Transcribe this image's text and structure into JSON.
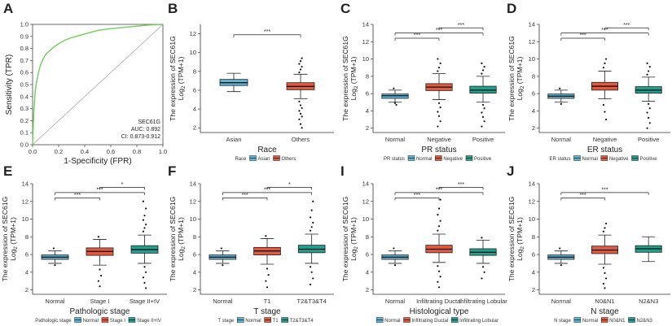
{
  "chart_data": [
    {
      "panel": "A",
      "type": "line",
      "title": "",
      "xlabel": "1-Specificity (FPR)",
      "ylabel": "Sensitivity (TPR)",
      "xlim": [
        0,
        1
      ],
      "ylim": [
        0,
        1
      ],
      "xticks": [
        "0.0",
        "0.2",
        "0.4",
        "0.6",
        "0.8",
        "1.0"
      ],
      "yticks": [
        "0.0",
        "0.1",
        "0.2",
        "0.3",
        "0.4",
        "0.5",
        "0.6",
        "0.7",
        "0.8",
        "0.9",
        "1.0"
      ],
      "roc_x": [
        0,
        0.005,
        0.01,
        0.015,
        0.02,
        0.03,
        0.04,
        0.05,
        0.06,
        0.08,
        0.1,
        0.13,
        0.16,
        0.2,
        0.25,
        0.3,
        0.4,
        0.5,
        0.6,
        0.7,
        0.8,
        0.9,
        1.0
      ],
      "roc_y": [
        0,
        0.15,
        0.28,
        0.36,
        0.44,
        0.52,
        0.57,
        0.62,
        0.66,
        0.71,
        0.75,
        0.78,
        0.81,
        0.84,
        0.87,
        0.89,
        0.92,
        0.95,
        0.965,
        0.975,
        0.985,
        0.995,
        1.0
      ],
      "annotation": [
        "SEC61G",
        "AUC: 0.892",
        "CI: 0.873-0.912"
      ]
    },
    {
      "panel": "B",
      "type": "box",
      "xlabel": "Race",
      "ylabel_line1": "The expression of SEC61G",
      "ylabel_line2": "Log2 (TPM+1)",
      "ylim": [
        1.5,
        13
      ],
      "yticks": [
        "2",
        "4",
        "6",
        "8",
        "10",
        "12"
      ],
      "categories": [
        "Asian",
        "Others"
      ],
      "boxes": [
        {
          "q1": 6.5,
          "median": 6.8,
          "q3": 7.15,
          "wlo": 5.85,
          "whi": 7.8,
          "outliers": []
        },
        {
          "q1": 6.05,
          "median": 6.4,
          "q3": 6.8,
          "wlo": 5.1,
          "whi": 7.7,
          "outliers": [
            4.8,
            4.4,
            4.1,
            3.8,
            3.5,
            3.2,
            2.9,
            2.4,
            2.0,
            7.9,
            8.2,
            8.5,
            8.8,
            9.1,
            9.4
          ]
        }
      ],
      "colors": [
        "#5bb6d3",
        "#e15a3f"
      ],
      "legend_title": "Race",
      "legend": [
        "Asian",
        "Others"
      ],
      "comparisons": [
        {
          "from": 0,
          "to": 1,
          "level": 11.9,
          "label": "***"
        }
      ]
    },
    {
      "panel": "C",
      "type": "box",
      "xlabel": "PR status",
      "ylabel_line1": "The expression of SEC61G",
      "ylabel_line2": "Log2 (TPM+1)",
      "ylim": [
        1.5,
        14
      ],
      "yticks": [
        "2",
        "4",
        "6",
        "8",
        "10",
        "12",
        "14"
      ],
      "categories": [
        "Normal",
        "Negative",
        "Positive"
      ],
      "boxes": [
        {
          "q1": 5.45,
          "median": 5.75,
          "q3": 5.95,
          "wlo": 5.0,
          "whi": 6.4,
          "outliers": [
            6.6,
            4.9,
            4.7
          ]
        },
        {
          "q1": 6.35,
          "median": 6.75,
          "q3": 7.15,
          "wlo": 5.3,
          "whi": 8.3,
          "outliers": [
            8.6,
            9.0,
            9.5,
            10.0,
            4.9,
            4.4,
            3.9,
            3.4,
            2.8,
            2.2
          ]
        },
        {
          "q1": 6.05,
          "median": 6.4,
          "q3": 6.85,
          "wlo": 5.0,
          "whi": 8.0,
          "outliers": [
            8.3,
            8.7,
            9.1,
            9.5,
            4.7,
            4.3,
            3.8,
            3.3,
            2.8,
            2.2
          ]
        }
      ],
      "colors": [
        "#5bb6d3",
        "#e15a3f",
        "#21a08d"
      ],
      "legend_title": "PR status",
      "legend": [
        "Normal",
        "Negative",
        "Positive"
      ],
      "comparisons": [
        {
          "from": 0,
          "to": 1,
          "level": 12.4,
          "label": "***"
        },
        {
          "from": 0,
          "to": 2,
          "level": 13.0,
          "label": "***"
        },
        {
          "from": 1,
          "to": 2,
          "level": 13.6,
          "label": "***"
        }
      ]
    },
    {
      "panel": "D",
      "type": "box",
      "xlabel": "ER status",
      "ylabel_line1": "The expression of SEC61G",
      "ylabel_line2": "Log2 (TPM+1)",
      "ylim": [
        1.5,
        14
      ],
      "yticks": [
        "2",
        "4",
        "6",
        "8",
        "10",
        "12",
        "14"
      ],
      "categories": [
        "Normal",
        "Negative",
        "Positive"
      ],
      "boxes": [
        {
          "q1": 5.45,
          "median": 5.7,
          "q3": 5.95,
          "wlo": 5.0,
          "whi": 6.4,
          "outliers": [
            6.6,
            4.8
          ]
        },
        {
          "q1": 6.4,
          "median": 6.85,
          "q3": 7.3,
          "wlo": 5.4,
          "whi": 8.6,
          "outliers": [
            9.0,
            9.5,
            10.0,
            4.7,
            3.9,
            3.0
          ]
        },
        {
          "q1": 6.05,
          "median": 6.4,
          "q3": 6.8,
          "wlo": 5.1,
          "whi": 7.9,
          "outliers": [
            8.2,
            8.6,
            9.1,
            9.5,
            4.8,
            4.3,
            3.8,
            3.2,
            2.6,
            2.0
          ]
        }
      ],
      "colors": [
        "#5bb6d3",
        "#e15a3f",
        "#21a08d"
      ],
      "legend_title": "ER status",
      "legend": [
        "Normal",
        "Negative",
        "Positive"
      ],
      "comparisons": [
        {
          "from": 0,
          "to": 1,
          "level": 12.4,
          "label": "***"
        },
        {
          "from": 0,
          "to": 2,
          "level": 13.0,
          "label": "***"
        },
        {
          "from": 1,
          "to": 2,
          "level": 13.6,
          "label": "***"
        }
      ]
    },
    {
      "panel": "E",
      "type": "box",
      "xlabel": "Pathologic stage",
      "ylabel_line1": "The expression of SEC61G",
      "ylabel_line2": "Log2 (TPM+1)",
      "ylim": [
        1.5,
        14
      ],
      "yticks": [
        "2",
        "4",
        "6",
        "8",
        "10",
        "12",
        "14"
      ],
      "categories": [
        "Normal",
        "Stage I",
        "Stage II+IV"
      ],
      "boxes": [
        {
          "q1": 5.45,
          "median": 5.7,
          "q3": 5.95,
          "wlo": 5.0,
          "whi": 6.4,
          "outliers": [
            6.7,
            4.8
          ]
        },
        {
          "q1": 5.9,
          "median": 6.35,
          "q3": 6.75,
          "wlo": 4.8,
          "whi": 7.7,
          "outliers": [
            8.0,
            4.3,
            3.6,
            3.0,
            2.4
          ]
        },
        {
          "q1": 6.15,
          "median": 6.55,
          "q3": 7.0,
          "wlo": 5.0,
          "whi": 8.2,
          "outliers": [
            8.6,
            9.0,
            9.4,
            9.9,
            10.4,
            11.2,
            12.0,
            4.6,
            4.0,
            3.4,
            2.8,
            2.2
          ]
        }
      ],
      "colors": [
        "#5bb6d3",
        "#e15a3f",
        "#21a08d"
      ],
      "legend_title": "Pathologic stage",
      "legend": [
        "Normal",
        "Stage I",
        "Stage II+IV"
      ],
      "comparisons": [
        {
          "from": 0,
          "to": 1,
          "level": 12.4,
          "label": "***"
        },
        {
          "from": 0,
          "to": 2,
          "level": 13.0,
          "label": "***"
        },
        {
          "from": 1,
          "to": 2,
          "level": 13.6,
          "label": "*"
        }
      ]
    },
    {
      "panel": "F",
      "type": "box",
      "xlabel": "T stage",
      "ylabel_line1": "The expression of SEC61G",
      "ylabel_line2": "Log2 (TPM+1)",
      "ylim": [
        1.5,
        14
      ],
      "yticks": [
        "2",
        "4",
        "6",
        "8",
        "10",
        "12",
        "14"
      ],
      "categories": [
        "Normal",
        "T1",
        "T2&T3&T4"
      ],
      "boxes": [
        {
          "q1": 5.45,
          "median": 5.7,
          "q3": 5.95,
          "wlo": 5.0,
          "whi": 6.4,
          "outliers": [
            6.7,
            4.8
          ]
        },
        {
          "q1": 5.95,
          "median": 6.4,
          "q3": 6.8,
          "wlo": 4.9,
          "whi": 7.8,
          "outliers": [
            8.1,
            4.4,
            3.7,
            3.0,
            2.3
          ]
        },
        {
          "q1": 6.2,
          "median": 6.6,
          "q3": 7.05,
          "wlo": 5.0,
          "whi": 8.3,
          "outliers": [
            8.7,
            9.1,
            9.6,
            10.2,
            11.0,
            12.0,
            4.6,
            4.0,
            3.3,
            2.6
          ]
        }
      ],
      "colors": [
        "#5bb6d3",
        "#e15a3f",
        "#21a08d"
      ],
      "legend_title": "T stage",
      "legend": [
        "Normal",
        "T1",
        "T2&T3&T4"
      ],
      "comparisons": [
        {
          "from": 0,
          "to": 1,
          "level": 12.4,
          "label": "***"
        },
        {
          "from": 0,
          "to": 2,
          "level": 13.0,
          "label": "***"
        },
        {
          "from": 1,
          "to": 2,
          "level": 13.6,
          "label": "*"
        }
      ]
    },
    {
      "panel": "I",
      "type": "box",
      "xlabel": "Histological type",
      "ylabel_line1": "The expression of SEC61G",
      "ylabel_line2": "Log2 (TPM+1)",
      "ylim": [
        1.5,
        14
      ],
      "yticks": [
        "2",
        "4",
        "6",
        "8",
        "10",
        "12",
        "14"
      ],
      "categories": [
        "Normal",
        "Infiltrating Ductal",
        "Infiltrating Lobular"
      ],
      "boxes": [
        {
          "q1": 5.45,
          "median": 5.7,
          "q3": 5.95,
          "wlo": 5.0,
          "whi": 6.4,
          "outliers": [
            6.7,
            4.8
          ]
        },
        {
          "q1": 6.2,
          "median": 6.6,
          "q3": 7.05,
          "wlo": 5.1,
          "whi": 8.3,
          "outliers": [
            8.7,
            9.2,
            9.8,
            10.5,
            11.2,
            12.2,
            4.7,
            4.1,
            3.5,
            2.9,
            2.3
          ]
        },
        {
          "q1": 5.9,
          "median": 6.25,
          "q3": 6.65,
          "wlo": 5.0,
          "whi": 7.6,
          "outliers": [
            7.9,
            4.6,
            4.0,
            3.3
          ]
        }
      ],
      "colors": [
        "#5bb6d3",
        "#e15a3f",
        "#21a08d"
      ],
      "legend_title": "",
      "legend": [
        "Normal",
        "Infiltrating Ductal",
        "Infiltrating Lobular"
      ],
      "comparisons": [
        {
          "from": 0,
          "to": 1,
          "level": 12.4,
          "label": "***"
        },
        {
          "from": 0,
          "to": 2,
          "level": 13.0,
          "label": "***"
        },
        {
          "from": 1,
          "to": 2,
          "level": 13.6,
          "label": "***"
        }
      ]
    },
    {
      "panel": "J",
      "type": "box",
      "xlabel": "N stage",
      "ylabel_line1": "The expression of SEC61G",
      "ylabel_line2": "Log2 (TPM+1)",
      "ylim": [
        1.5,
        14
      ],
      "yticks": [
        "2",
        "4",
        "6",
        "8",
        "10",
        "12",
        "14"
      ],
      "categories": [
        "Normal",
        "N0&N1",
        "N2&N3"
      ],
      "boxes": [
        {
          "q1": 5.45,
          "median": 5.7,
          "q3": 5.95,
          "wlo": 5.0,
          "whi": 6.4,
          "outliers": [
            6.7,
            4.8
          ]
        },
        {
          "q1": 6.1,
          "median": 6.5,
          "q3": 6.95,
          "wlo": 4.9,
          "whi": 8.2,
          "outliers": [
            8.6,
            9.0,
            9.5,
            4.5,
            3.9,
            3.3,
            2.7,
            2.2
          ]
        },
        {
          "q1": 6.25,
          "median": 6.65,
          "q3": 7.0,
          "wlo": 5.2,
          "whi": 8.0,
          "outliers": []
        }
      ],
      "colors": [
        "#5bb6d3",
        "#e15a3f",
        "#21a08d"
      ],
      "legend_title": "N stage",
      "legend": [
        "Normal",
        "N0&N1",
        "N2&N3"
      ],
      "comparisons": [
        {
          "from": 0,
          "to": 1,
          "level": 12.4,
          "label": "***"
        },
        {
          "from": 0,
          "to": 2,
          "level": 13.0,
          "label": "***"
        }
      ]
    }
  ]
}
